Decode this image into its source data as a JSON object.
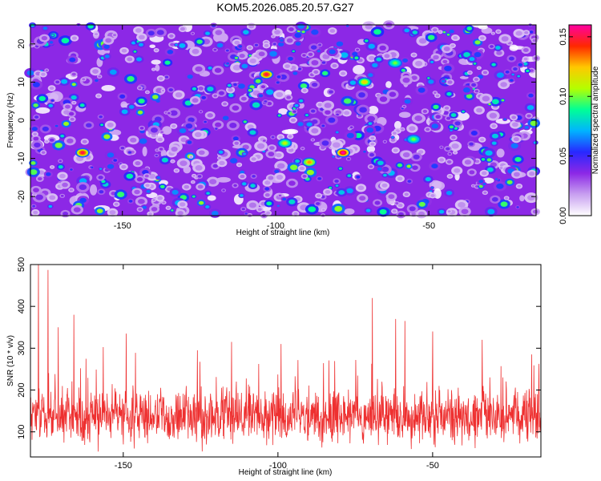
{
  "title": "KOM5.2026.085.20.57.G27",
  "chart_data": [
    {
      "type": "heatmap",
      "xlabel": "Height of straight line (km)",
      "ylabel": "Frequency (Hz)",
      "xlim": [
        -180,
        -15
      ],
      "ylim": [
        -25,
        25
      ],
      "xticks": [
        -150,
        -100,
        -50
      ],
      "yticks": [
        -20,
        -10,
        0,
        10,
        20
      ],
      "colorbar": {
        "label": "Normalized spectral amplitude",
        "range": [
          0,
          0.16
        ],
        "ticks": [
          "0.00",
          "0.05",
          "0.10",
          "0.15"
        ],
        "colormap": [
          "#ffffff",
          "#c8a0f0",
          "#8c28e6",
          "#2828ff",
          "#00b4ff",
          "#00ff96",
          "#b4ff00",
          "#ffc800",
          "#ff2800",
          "#ff00a0"
        ]
      },
      "hotspots": [
        {
          "x": -163,
          "y": -8.5,
          "value": 0.15
        },
        {
          "x": -78,
          "y": -8.5,
          "value": 0.16
        },
        {
          "x": -103,
          "y": 12,
          "value": 0.15
        },
        {
          "x": -89,
          "y": -11,
          "value": 0.13
        },
        {
          "x": -71,
          "y": 10,
          "value": 0.12
        },
        {
          "x": -97,
          "y": -6,
          "value": 0.11
        },
        {
          "x": -61,
          "y": 15,
          "value": 0.1
        },
        {
          "x": -55,
          "y": -5,
          "value": 0.1
        }
      ]
    },
    {
      "type": "line",
      "xlabel": "Height of straight line (km)",
      "ylabel": "SNR (10 * v/v)",
      "xlim": [
        -180,
        -15
      ],
      "ylim": [
        40,
        500
      ],
      "xticks": [
        -150,
        -100,
        -50
      ],
      "yticks": [
        100,
        200,
        300,
        400,
        500
      ],
      "color": "#ee3030",
      "series_stats": {
        "mean": 135,
        "spread": 55
      },
      "peaks": [
        {
          "x": -177.4,
          "y": 500
        },
        {
          "x": -174.3,
          "y": 487
        },
        {
          "x": -171,
          "y": 350
        },
        {
          "x": -166,
          "y": 380
        },
        {
          "x": -149,
          "y": 335
        },
        {
          "x": -126,
          "y": 295
        },
        {
          "x": -115,
          "y": 315
        },
        {
          "x": -99,
          "y": 310
        },
        {
          "x": -69.5,
          "y": 420
        },
        {
          "x": -62,
          "y": 370
        },
        {
          "x": -59,
          "y": 365
        },
        {
          "x": -50,
          "y": 340
        },
        {
          "x": -34,
          "y": 320
        },
        {
          "x": -18,
          "y": 285
        }
      ]
    }
  ]
}
